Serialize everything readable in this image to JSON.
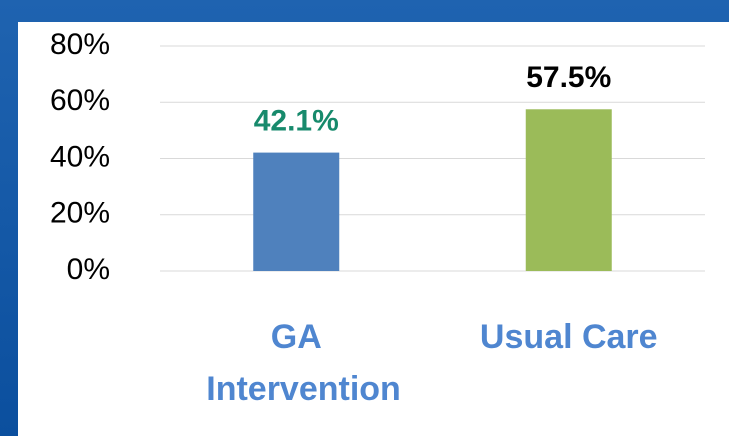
{
  "chart_data": {
    "type": "bar",
    "categories": [
      "GA Intervention",
      "Usual Care"
    ],
    "values": [
      42.1,
      57.5
    ],
    "value_labels": [
      "42.1%",
      "57.5%"
    ],
    "colors": [
      "#4f81bd",
      "#9bbb59"
    ],
    "value_label_colors": [
      "#178a6c",
      "#000000"
    ],
    "category_label_color": "#4f86d0",
    "ylim": [
      0,
      80
    ],
    "yticks": [
      {
        "value": 0,
        "label": "0%"
      },
      {
        "value": 20,
        "label": "20%"
      },
      {
        "value": 40,
        "label": "40%"
      },
      {
        "value": 60,
        "label": "60%"
      },
      {
        "value": 80,
        "label": "80%"
      }
    ],
    "grid": true
  }
}
